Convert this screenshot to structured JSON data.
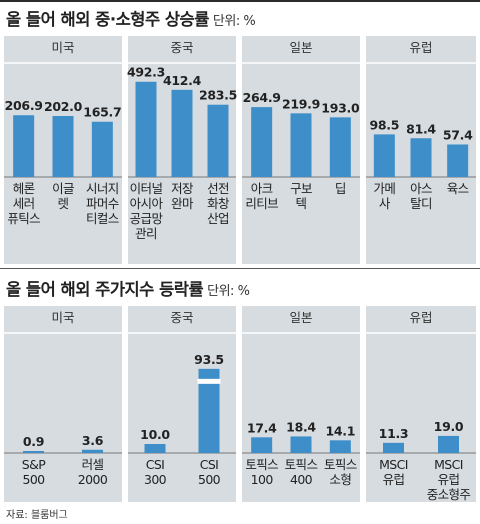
{
  "chart_data": [
    {
      "type": "bar",
      "title": "올 들어 해외 중·소형주 상승률",
      "unit_label": "단위: %",
      "ylim": [
        0,
        500
      ],
      "scale": "sqrt",
      "bar_color": "#3d8ec9",
      "panel_color": "#d7dce0",
      "groups": [
        {
          "name": "미국",
          "categories": [
            [
              "헤론",
              "세러",
              "퓨틱스"
            ],
            [
              "이글",
              "렛"
            ],
            [
              "시너지",
              "파머수",
              "티컬스"
            ]
          ],
          "values": [
            206.9,
            202.0,
            165.7
          ]
        },
        {
          "name": "중국",
          "categories": [
            [
              "이터널",
              "아시아",
              "공급망",
              "관리"
            ],
            [
              "저장",
              "완마"
            ],
            [
              "선전",
              "화창",
              "산업"
            ]
          ],
          "values": [
            492.3,
            412.4,
            283.5
          ]
        },
        {
          "name": "일본",
          "categories": [
            [
              "아크",
              "리티브"
            ],
            [
              "구보",
              "텍"
            ],
            [
              "딥"
            ]
          ],
          "values": [
            264.9,
            219.9,
            193.0
          ]
        },
        {
          "name": "유럽",
          "categories": [
            [
              "가메",
              "사"
            ],
            [
              "아스",
              "탈디"
            ],
            [
              "육스"
            ]
          ],
          "values": [
            98.5,
            81.4,
            57.4
          ]
        }
      ]
    },
    {
      "type": "bar",
      "title": "올 들어 해외 주가지수 등락률",
      "unit_label": "단위: %",
      "ylim": [
        0,
        100
      ],
      "bar_color": "#3d8ec9",
      "panel_color": "#d7dce0",
      "groups": [
        {
          "name": "미국",
          "categories": [
            [
              "S&P",
              "500"
            ],
            [
              "러셀",
              "2000"
            ]
          ],
          "values": [
            0.9,
            3.6
          ]
        },
        {
          "name": "중국",
          "categories": [
            [
              "CSI",
              "300"
            ],
            [
              "CSI",
              "500"
            ]
          ],
          "values": [
            10.0,
            93.5
          ]
        },
        {
          "name": "일본",
          "categories": [
            [
              "토픽스",
              "100"
            ],
            [
              "토픽스",
              "400"
            ],
            [
              "토픽스",
              "소형"
            ]
          ],
          "values": [
            17.4,
            18.4,
            14.1
          ]
        },
        {
          "name": "유럽",
          "categories": [
            [
              "MSCI",
              "유럽"
            ],
            [
              "MSCI",
              "유럽",
              "중소형주"
            ]
          ],
          "values": [
            11.3,
            19.0
          ]
        }
      ]
    }
  ],
  "source": "자료: 블룸버그"
}
